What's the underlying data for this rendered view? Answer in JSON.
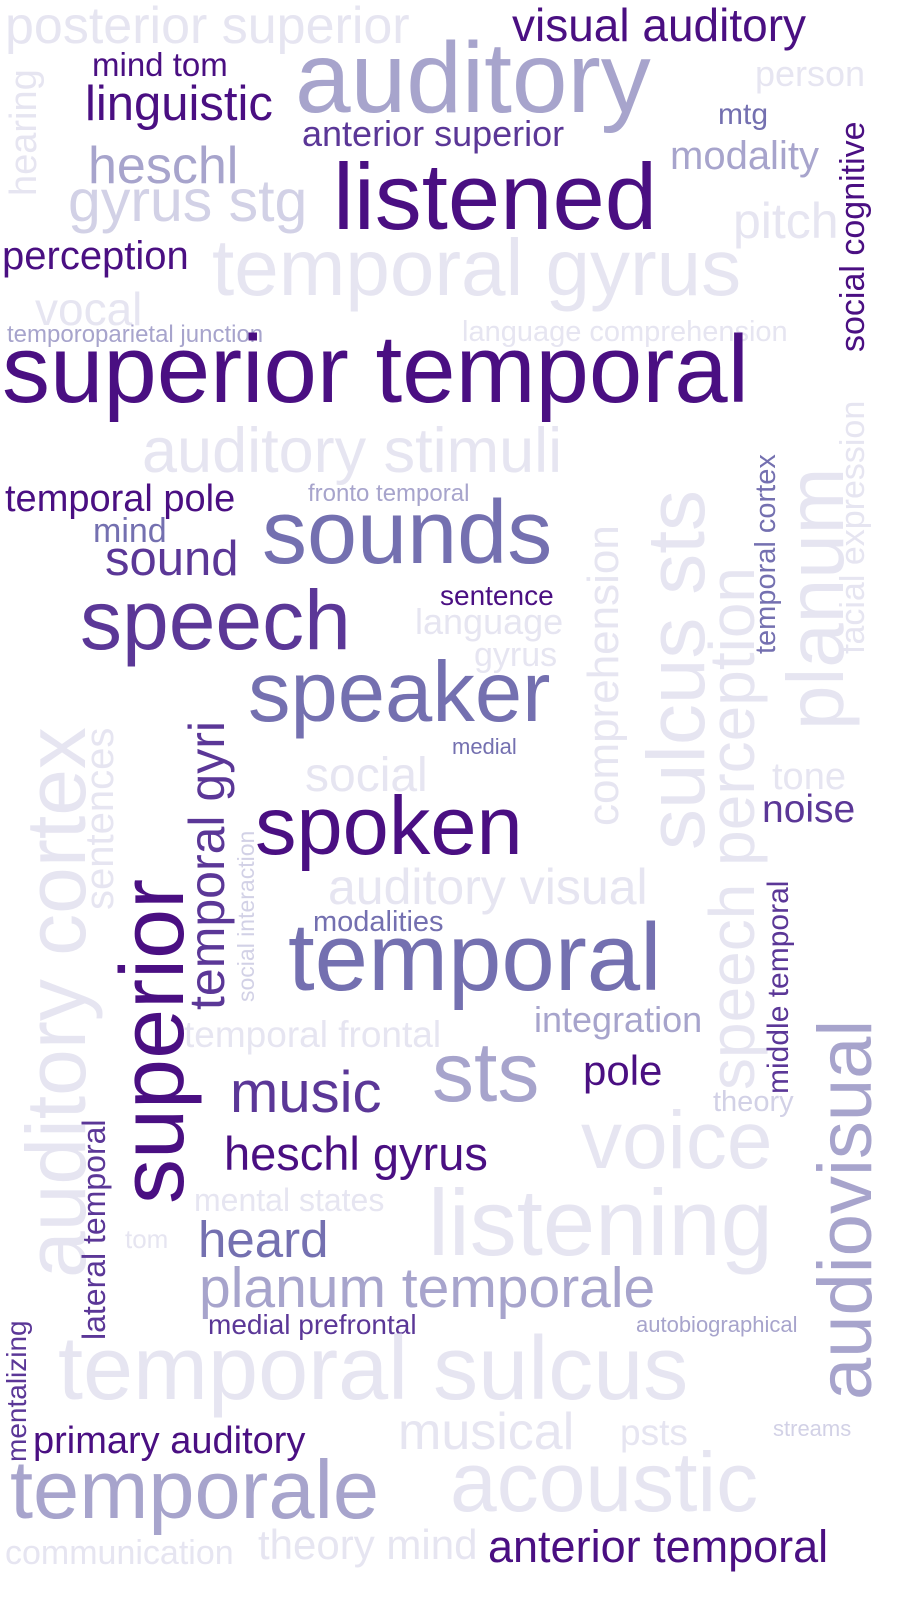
{
  "palette": {
    "c1": "#4a0f82",
    "c2": "#5b3797",
    "c3": "#7470b0",
    "c4": "#a7a4cc",
    "c5": "#d2d1e6",
    "c6": "#e6e5f1"
  },
  "words": [
    {
      "text": "posterior superior",
      "tone": "c6"
    },
    {
      "text": "visual auditory",
      "tone": "c1"
    },
    {
      "text": "mind tom",
      "tone": "c1"
    },
    {
      "text": "auditory",
      "tone": "c4"
    },
    {
      "text": "person",
      "tone": "c6"
    },
    {
      "text": "linguistic",
      "tone": "c1"
    },
    {
      "text": "mtg",
      "tone": "c3"
    },
    {
      "text": "anterior superior",
      "tone": "c2"
    },
    {
      "text": "modality",
      "tone": "c4"
    },
    {
      "text": "heschl",
      "tone": "c4"
    },
    {
      "text": "gyrus stg",
      "tone": "c5"
    },
    {
      "text": "listened",
      "tone": "c1"
    },
    {
      "text": "pitch",
      "tone": "c6"
    },
    {
      "text": "perception",
      "tone": "c1"
    },
    {
      "text": "temporal gyrus",
      "tone": "c6"
    },
    {
      "text": "vocal",
      "tone": "c6"
    },
    {
      "text": "temporoparietal junction",
      "tone": "c4"
    },
    {
      "text": "language comprehension",
      "tone": "c6"
    },
    {
      "text": "superior temporal",
      "tone": "c1"
    },
    {
      "text": "auditory stimuli",
      "tone": "c6"
    },
    {
      "text": "temporal pole",
      "tone": "c1"
    },
    {
      "text": "fronto temporal",
      "tone": "c4"
    },
    {
      "text": "mind",
      "tone": "c3"
    },
    {
      "text": "sounds",
      "tone": "c3"
    },
    {
      "text": "sound",
      "tone": "c2"
    },
    {
      "text": "sentence",
      "tone": "c1"
    },
    {
      "text": "speech",
      "tone": "c2"
    },
    {
      "text": "language",
      "tone": "c6"
    },
    {
      "text": "gyrus",
      "tone": "c6"
    },
    {
      "text": "speaker",
      "tone": "c3"
    },
    {
      "text": "medial",
      "tone": "c3"
    },
    {
      "text": "social",
      "tone": "c6"
    },
    {
      "text": "tone",
      "tone": "c6"
    },
    {
      "text": "noise",
      "tone": "c2"
    },
    {
      "text": "spoken",
      "tone": "c1"
    },
    {
      "text": "auditory visual",
      "tone": "c6"
    },
    {
      "text": "modalities",
      "tone": "c3"
    },
    {
      "text": "temporal",
      "tone": "c3"
    },
    {
      "text": "integration",
      "tone": "c4"
    },
    {
      "text": "temporal frontal",
      "tone": "c6"
    },
    {
      "text": "sts",
      "tone": "c4"
    },
    {
      "text": "pole",
      "tone": "c1"
    },
    {
      "text": "music",
      "tone": "c2"
    },
    {
      "text": "theory",
      "tone": "c5"
    },
    {
      "text": "heschl gyrus",
      "tone": "c1"
    },
    {
      "text": "voice",
      "tone": "c6"
    },
    {
      "text": "mental states",
      "tone": "c6"
    },
    {
      "text": "listening",
      "tone": "c6"
    },
    {
      "text": "tom",
      "tone": "c6"
    },
    {
      "text": "heard",
      "tone": "c3"
    },
    {
      "text": "planum temporale",
      "tone": "c4"
    },
    {
      "text": "medial prefrontal",
      "tone": "c2"
    },
    {
      "text": "autobiographical",
      "tone": "c4"
    },
    {
      "text": "temporal sulcus",
      "tone": "c6"
    },
    {
      "text": "musical",
      "tone": "c6"
    },
    {
      "text": "psts",
      "tone": "c6"
    },
    {
      "text": "streams",
      "tone": "c5"
    },
    {
      "text": "primary auditory",
      "tone": "c1"
    },
    {
      "text": "temporale",
      "tone": "c4"
    },
    {
      "text": "acoustic",
      "tone": "c6"
    },
    {
      "text": "theory mind",
      "tone": "c6"
    },
    {
      "text": "communication",
      "tone": "c6"
    },
    {
      "text": "anterior temporal",
      "tone": "c1"
    },
    {
      "text": "hearing",
      "tone": "c6"
    },
    {
      "text": "social cognitive",
      "tone": "c1"
    },
    {
      "text": "auditory cortex",
      "tone": "c6"
    },
    {
      "text": "sentences",
      "tone": "c6"
    },
    {
      "text": "superior",
      "tone": "c1"
    },
    {
      "text": "temporal gyri",
      "tone": "c2"
    },
    {
      "text": "social interaction",
      "tone": "c5"
    },
    {
      "text": "comprehension",
      "tone": "c6"
    },
    {
      "text": "sulcus sts",
      "tone": "c6"
    },
    {
      "text": "speech perception",
      "tone": "c6"
    },
    {
      "text": "temporal cortex",
      "tone": "c3"
    },
    {
      "text": "planum",
      "tone": "c6"
    },
    {
      "text": "facial expression",
      "tone": "c6"
    },
    {
      "text": "middle temporal",
      "tone": "c2"
    },
    {
      "text": "audiovisual",
      "tone": "c4"
    },
    {
      "text": "lateral temporal",
      "tone": "c2"
    },
    {
      "text": "mentalizing",
      "tone": "c2"
    }
  ]
}
